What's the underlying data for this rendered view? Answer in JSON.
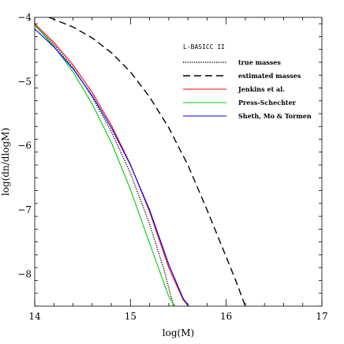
{
  "chart_data": {
    "type": "line",
    "title": "",
    "xlabel": "log(M)",
    "ylabel": "log(dn/dlogM)",
    "xlim": [
      14,
      17
    ],
    "ylim": [
      -8.5,
      -4
    ],
    "xticks": [
      14,
      15,
      16,
      17
    ],
    "yticks": [
      -8,
      -7,
      -6,
      -5,
      -4
    ],
    "grid": false,
    "legend_title": "L-BASICC II",
    "legend_position": "top-right",
    "series": [
      {
        "name": "true masses",
        "style": "dotted",
        "color": "#000000",
        "x": [
          14.0,
          14.2,
          14.4,
          14.6,
          14.8,
          15.0,
          15.2,
          15.35,
          15.45
        ],
        "y": [
          -4.12,
          -4.42,
          -4.78,
          -5.24,
          -5.78,
          -6.43,
          -7.22,
          -7.93,
          -8.5
        ]
      },
      {
        "name": "estimated masses",
        "style": "dashed",
        "color": "#000000",
        "x": [
          14.15,
          14.4,
          14.6,
          14.8,
          15.0,
          15.2,
          15.4,
          15.6,
          15.8,
          15.95,
          16.1,
          16.2
        ],
        "y": [
          -4.0,
          -4.15,
          -4.32,
          -4.55,
          -4.85,
          -5.24,
          -5.72,
          -6.3,
          -7.0,
          -7.55,
          -8.1,
          -8.5
        ]
      },
      {
        "name": "Jenkins et al.",
        "style": "solid",
        "color": "#ff0000",
        "x": [
          14.0,
          14.2,
          14.4,
          14.6,
          14.8,
          15.0,
          15.2,
          15.4,
          15.55,
          15.65
        ],
        "y": [
          -4.1,
          -4.39,
          -4.74,
          -5.17,
          -5.68,
          -6.29,
          -7.03,
          -7.9,
          -8.4,
          -8.58
        ]
      },
      {
        "name": "Press-Schechter",
        "style": "solid",
        "color": "#00cc00",
        "x": [
          14.0,
          14.2,
          14.4,
          14.6,
          14.8,
          15.0,
          15.2,
          15.4,
          15.5
        ],
        "y": [
          -4.12,
          -4.45,
          -4.85,
          -5.35,
          -5.95,
          -6.68,
          -7.52,
          -8.35,
          -8.58
        ]
      },
      {
        "name": "Sheth, Mo & Tormen",
        "style": "solid",
        "color": "#0000ff",
        "x": [
          14.0,
          14.2,
          14.4,
          14.6,
          14.8,
          15.0,
          15.2,
          15.4,
          15.55,
          15.65
        ],
        "y": [
          -4.18,
          -4.46,
          -4.8,
          -5.22,
          -5.72,
          -6.3,
          -7.0,
          -7.85,
          -8.38,
          -8.58
        ]
      }
    ]
  }
}
